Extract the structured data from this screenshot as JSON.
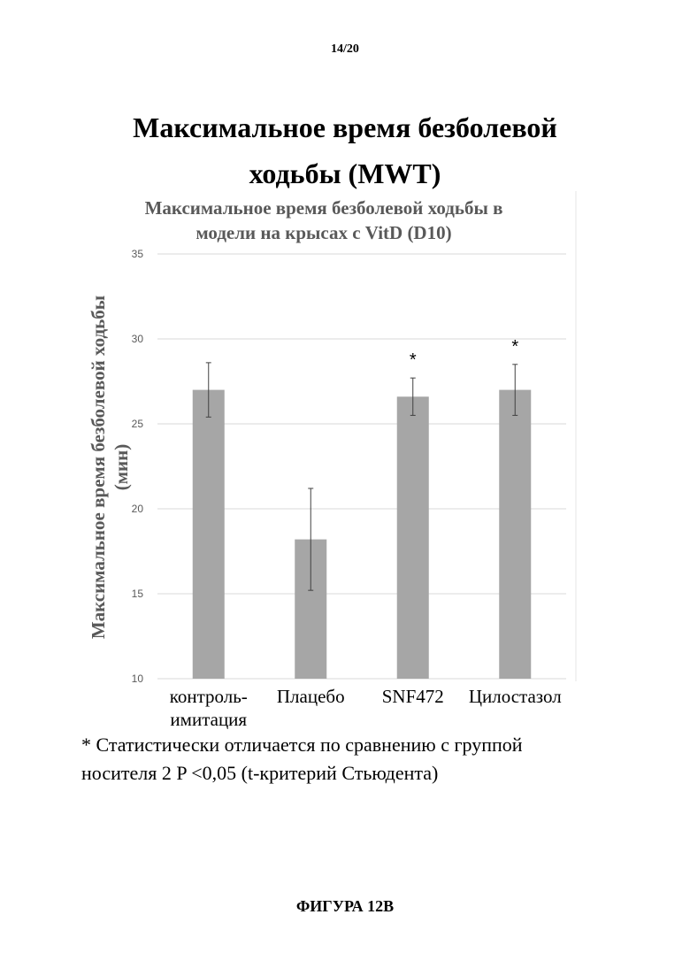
{
  "page": {
    "number": "14/20",
    "title": "Максимальное время безболевой ходьбы (MWT)",
    "footnote_line1": "* Статистически отличается по сравнению с группой",
    "footnote_line2": "носителя 2 P <0,05 (t-критерий Стьюдента)",
    "figure_label": "ФИГУРА 12В"
  },
  "chart_data": {
    "type": "bar",
    "title": "Максимальное время безболевой ходьбы в модели на крысах с VitD (D10)",
    "title_lines": [
      "Максимальное время безболевой ходьбы в",
      "модели на крысах с VitD (D10)"
    ],
    "ylabel": "Максимальное время безболевой ходьбы (мин)",
    "ylabel_lines": [
      "Максимальное время безболевой ходьбы",
      "(мин)"
    ],
    "categories": [
      "контроль-имитация",
      "Плацебо",
      "SNF472",
      "Цилостазол"
    ],
    "category_lines": [
      [
        "контроль-",
        "имитация"
      ],
      [
        "Плацебо"
      ],
      [
        "SNF472"
      ],
      [
        "Цилостазол"
      ]
    ],
    "values": [
      27.0,
      18.2,
      26.6,
      27.0
    ],
    "errors": [
      1.6,
      3.0,
      1.1,
      1.5
    ],
    "significance": [
      "",
      "",
      "*",
      "*"
    ],
    "ylim": [
      10,
      35
    ],
    "yticks": [
      10,
      15,
      20,
      25,
      30,
      35
    ],
    "grid": true,
    "colors": {
      "bar": "#a6a6a6",
      "grid": "#d9d9d9",
      "axis_text": "#595959",
      "title": "#595959"
    }
  }
}
